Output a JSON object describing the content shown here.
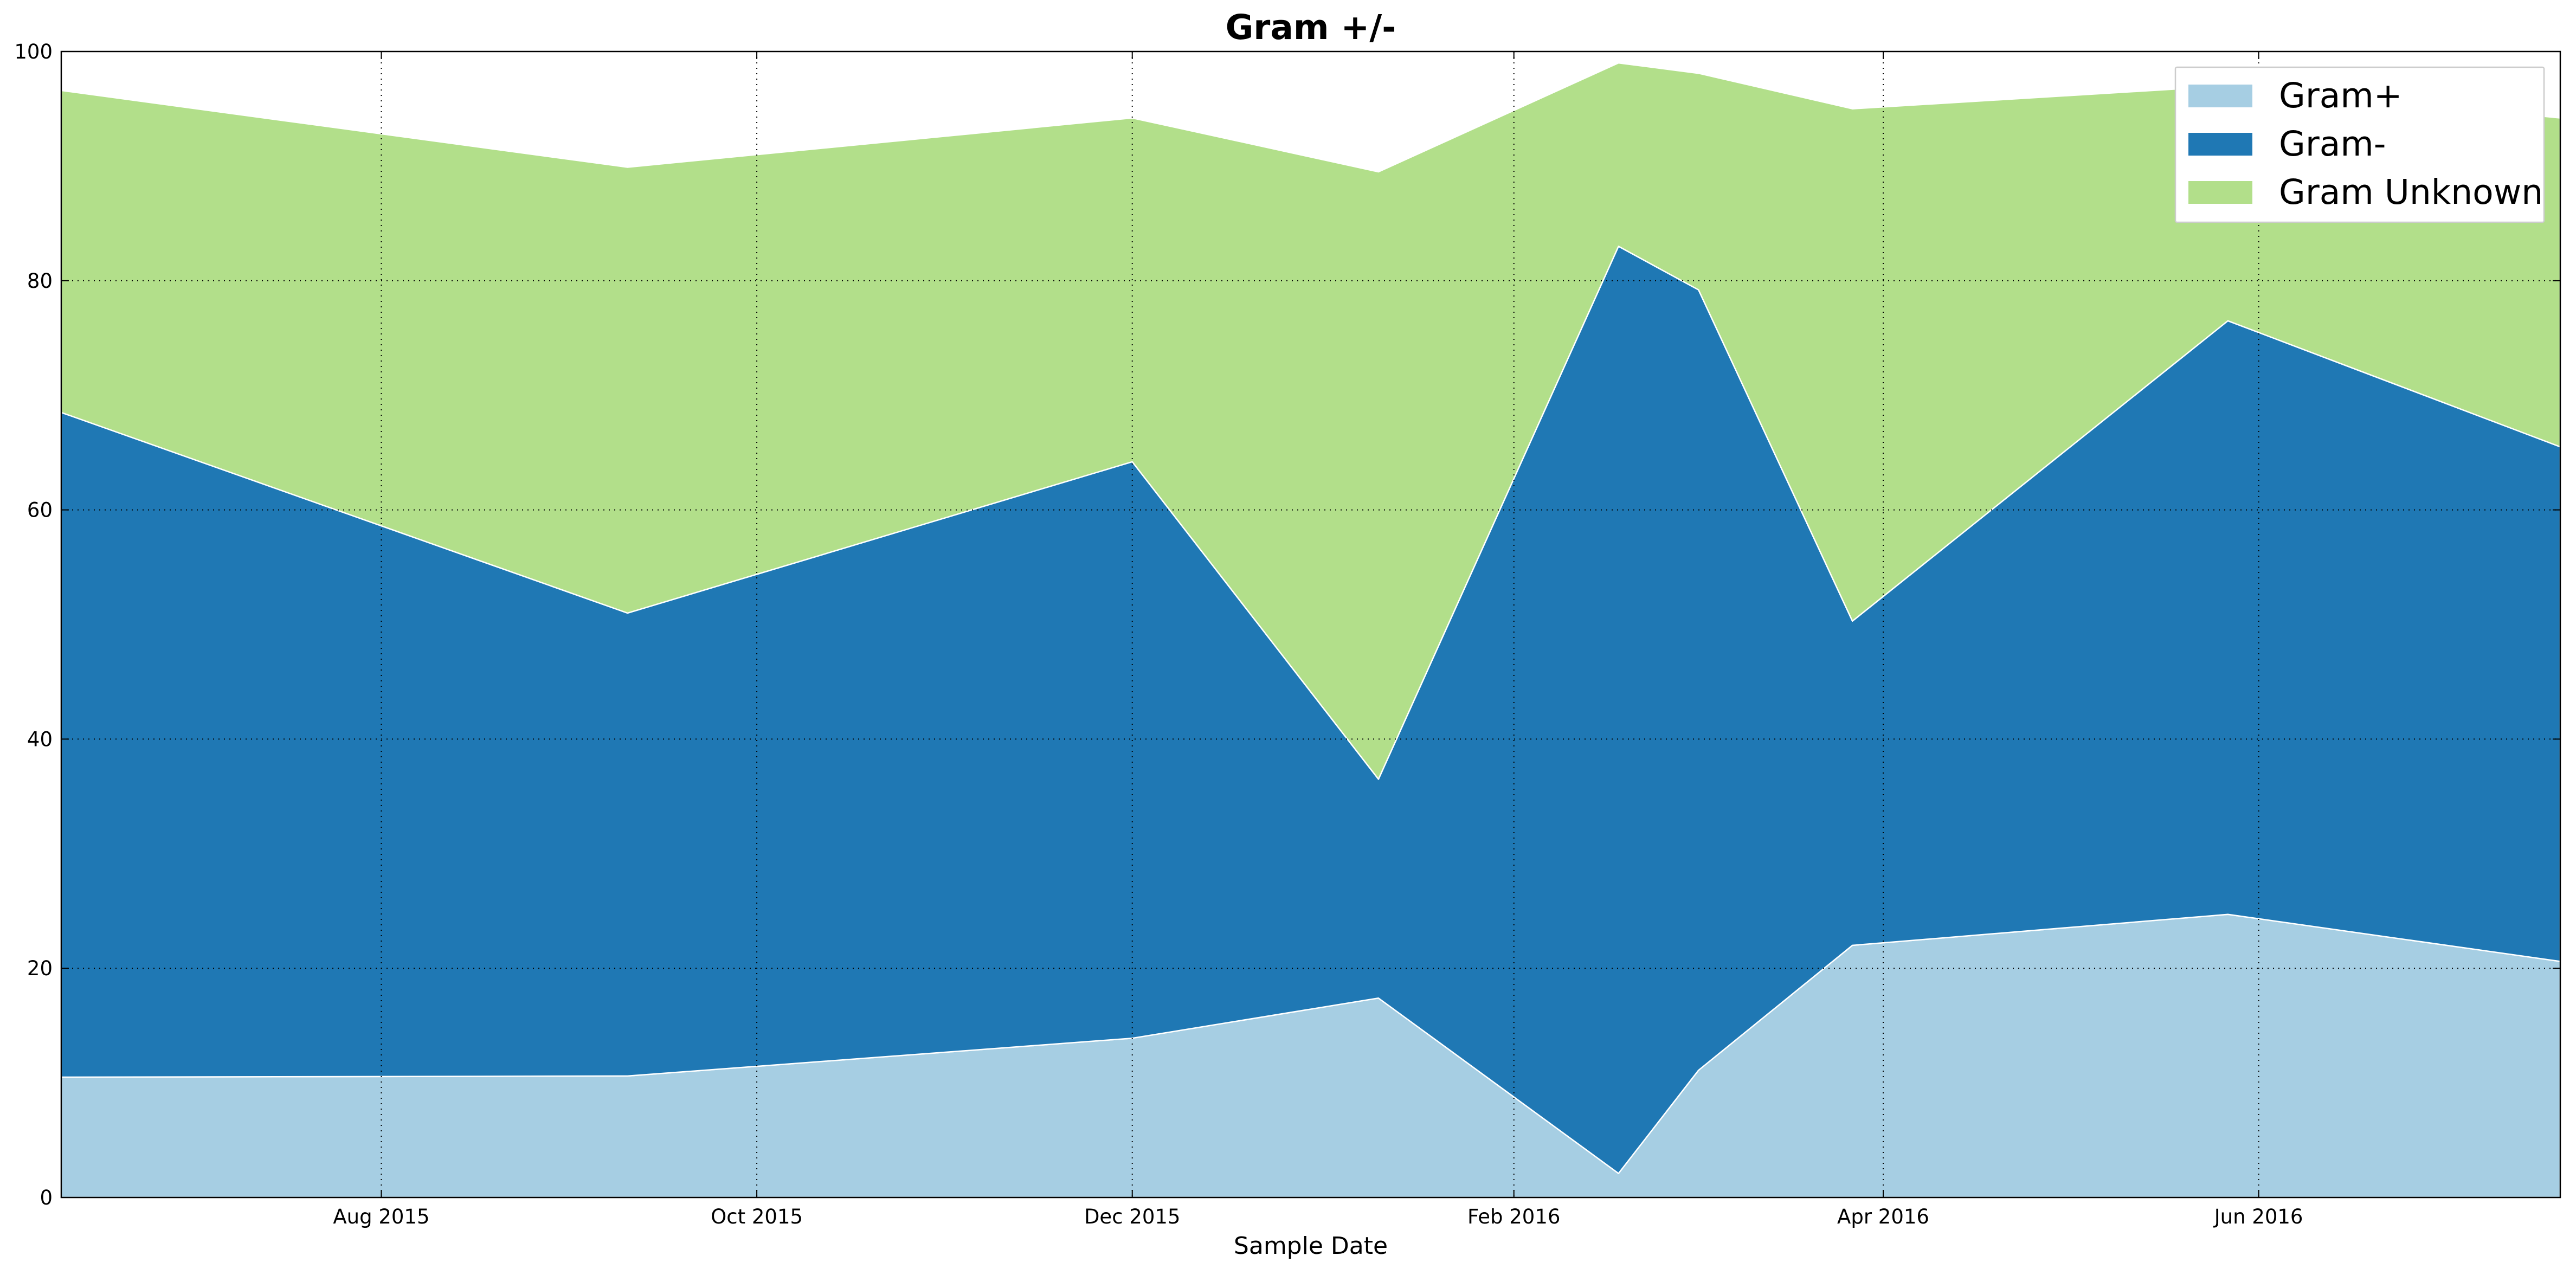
{
  "chart_data": {
    "type": "area",
    "stacked": true,
    "title": "Gram +/-",
    "xlabel": "Sample Date",
    "ylabel": "",
    "ylim": [
      0,
      100
    ],
    "xlim": [
      "2015-06-10",
      "2016-07-20"
    ],
    "x": [
      "2015-06-10",
      "2015-09-10",
      "2015-12-01",
      "2016-01-10",
      "2016-02-18",
      "2016-03-02",
      "2016-03-27",
      "2016-05-27",
      "2016-07-20"
    ],
    "series": [
      {
        "name": "Gram+",
        "color": "#a6cee3",
        "values": [
          10.5,
          10.6,
          13.9,
          17.4,
          2.1,
          11.1,
          22.0,
          24.7,
          20.6
        ]
      },
      {
        "name": "Gram-",
        "color": "#1f78b4",
        "values": [
          58.0,
          40.4,
          50.3,
          19.1,
          80.9,
          68.1,
          28.3,
          51.8,
          44.9
        ]
      },
      {
        "name": "Gram Unknown",
        "color": "#b2df8a",
        "values": [
          28.1,
          38.9,
          30.0,
          53.0,
          16.0,
          18.9,
          44.7,
          20.5,
          28.7
        ]
      }
    ],
    "xticks": [
      {
        "date": "2015-08-01",
        "label": "Aug 2015"
      },
      {
        "date": "2015-10-01",
        "label": "Oct 2015"
      },
      {
        "date": "2015-12-01",
        "label": "Dec 2015"
      },
      {
        "date": "2016-02-01",
        "label": "Feb 2016"
      },
      {
        "date": "2016-04-01",
        "label": "Apr 2016"
      },
      {
        "date": "2016-06-01",
        "label": "Jun 2016"
      }
    ],
    "yticks": [
      0,
      20,
      40,
      60,
      80,
      100
    ],
    "grid": true,
    "grid_style": "dotted",
    "legend_position": "top-right"
  }
}
